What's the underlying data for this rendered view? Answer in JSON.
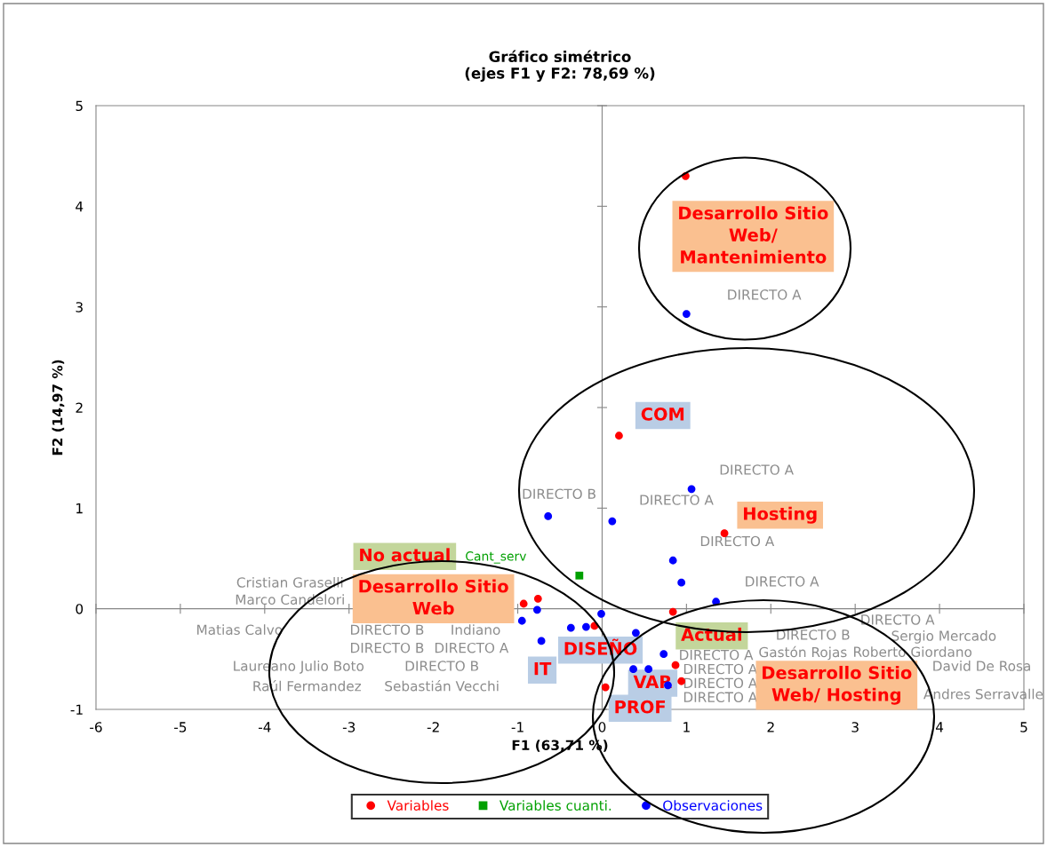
{
  "chart_data": {
    "type": "scatter",
    "title": "Gráfico simétrico\n(ejes F1 y F2: 78,69 %)",
    "xlabel": "F1 (63,71 %)",
    "ylabel": "F2 (14,97 %)",
    "xlim": [
      -6,
      5
    ],
    "ylim": [
      -1,
      5
    ],
    "xticks": [
      -6,
      -5,
      -4,
      -3,
      -2,
      -1,
      0,
      1,
      2,
      3,
      4,
      5
    ],
    "yticks": [
      -1,
      0,
      1,
      2,
      3,
      4,
      5
    ],
    "legend": "bottom",
    "series": [
      {
        "name": "Variables",
        "color": "#ff0000",
        "marker": "circle",
        "x": [
          0.99,
          0.2,
          1.45,
          -0.93,
          -0.76,
          0.84,
          -0.09,
          0.87,
          0.94,
          0.04
        ],
        "values": [
          4.3,
          1.72,
          0.75,
          0.05,
          0.1,
          -0.03,
          -0.17,
          -0.56,
          -0.72,
          -0.78
        ]
      },
      {
        "name": "Variables cuanti.",
        "color": "#00a000",
        "marker": "square",
        "x": [
          -0.27
        ],
        "values": [
          0.33
        ]
      },
      {
        "name": "Observaciones",
        "color": "#0000ff",
        "marker": "circle",
        "x": [
          1.0,
          1.06,
          -0.64,
          0.12,
          0.84,
          0.94,
          1.35,
          -0.01,
          -0.77,
          -0.95,
          -0.72,
          -0.37,
          -0.19,
          0.4,
          0.37,
          0.55,
          0.73,
          0.78
        ],
        "values": [
          2.93,
          1.19,
          0.92,
          0.87,
          0.48,
          0.26,
          0.07,
          -0.05,
          -0.01,
          -0.12,
          -0.32,
          -0.19,
          -0.18,
          -0.24,
          -0.6,
          -0.6,
          -0.45,
          -0.76
        ]
      }
    ],
    "annotations": [
      "Desarrollo Sitio\nWeb/\nMantenimiento",
      "COM",
      "Hosting",
      "No actual",
      "Desarrollo Sitio\nWeb",
      "Actual",
      "DISEÑO",
      "IT",
      "VAR",
      "PROF",
      "Desarrollo Sitio\nWeb/ Hosting",
      "Cant_serv",
      "DIRECTO A",
      "DIRECTO A",
      "DIRECTO B",
      "DIRECTO A",
      "DIRECTO A",
      "DIRECTO A",
      "Marco Candelori",
      "Cristian Graselli",
      "Matias Calvo",
      "DIRECTO B",
      "Indiano",
      "DIRECTO B",
      "DIRECTO A",
      "Laureano Julio Boto",
      "DIRECTO B",
      "Raúl Fermandez",
      "Sebastián Vecchi",
      "DIRECTO A",
      "Sergio Mercado",
      "Gastón Rojas",
      "Roberto Giordano",
      "David De Rosa",
      "DIRECTO A",
      "DIRECTO A",
      "DIRECTO B",
      "DIRECTO A",
      "DIRECTO A",
      "Andres Serravalle"
    ]
  }
}
